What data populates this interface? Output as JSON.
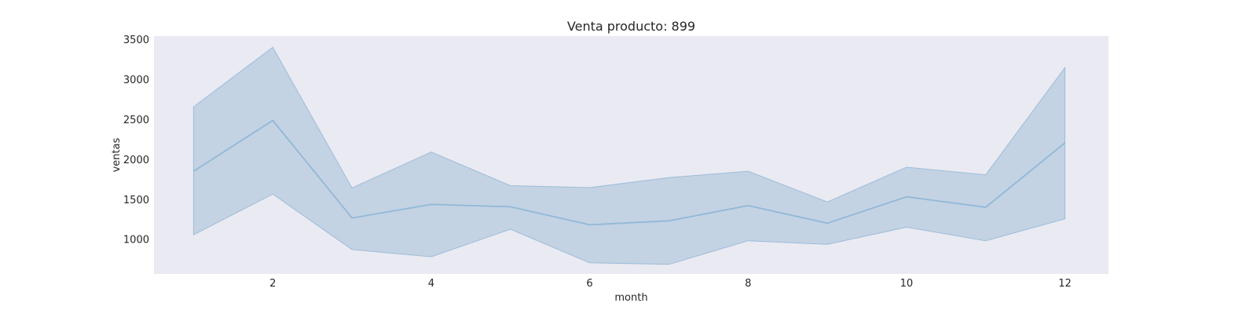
{
  "chart_data": {
    "type": "line",
    "title": "Venta producto: 899",
    "xlabel": "month",
    "ylabel": "ventas",
    "xlim": [
      0.5,
      12.55
    ],
    "ylim": [
      575,
      3550
    ],
    "xticks": [
      2,
      4,
      6,
      8,
      10,
      12
    ],
    "yticks": [
      1000,
      1500,
      2000,
      2500,
      3000,
      3500
    ],
    "grid": false,
    "legend": "none",
    "colors": {
      "background": "#eaeaf2",
      "line": "#92b8d6",
      "band": "#c3d3e4",
      "band_edge": "#9ebcd8"
    },
    "series": [
      {
        "x": [
          1,
          2,
          3,
          4,
          5,
          6,
          7,
          8,
          9,
          10,
          11,
          12
        ],
        "y": [
          1860,
          2495,
          1275,
          1445,
          1415,
          1190,
          1240,
          1430,
          1210,
          1540,
          1410,
          2215
        ],
        "y_upper": [
          2665,
          3410,
          1650,
          2100,
          1680,
          1655,
          1780,
          1860,
          1475,
          1910,
          1815,
          3155
        ],
        "y_lower": [
          1065,
          1575,
          880,
          790,
          1135,
          715,
          695,
          990,
          945,
          1160,
          990,
          1265
        ]
      }
    ]
  }
}
